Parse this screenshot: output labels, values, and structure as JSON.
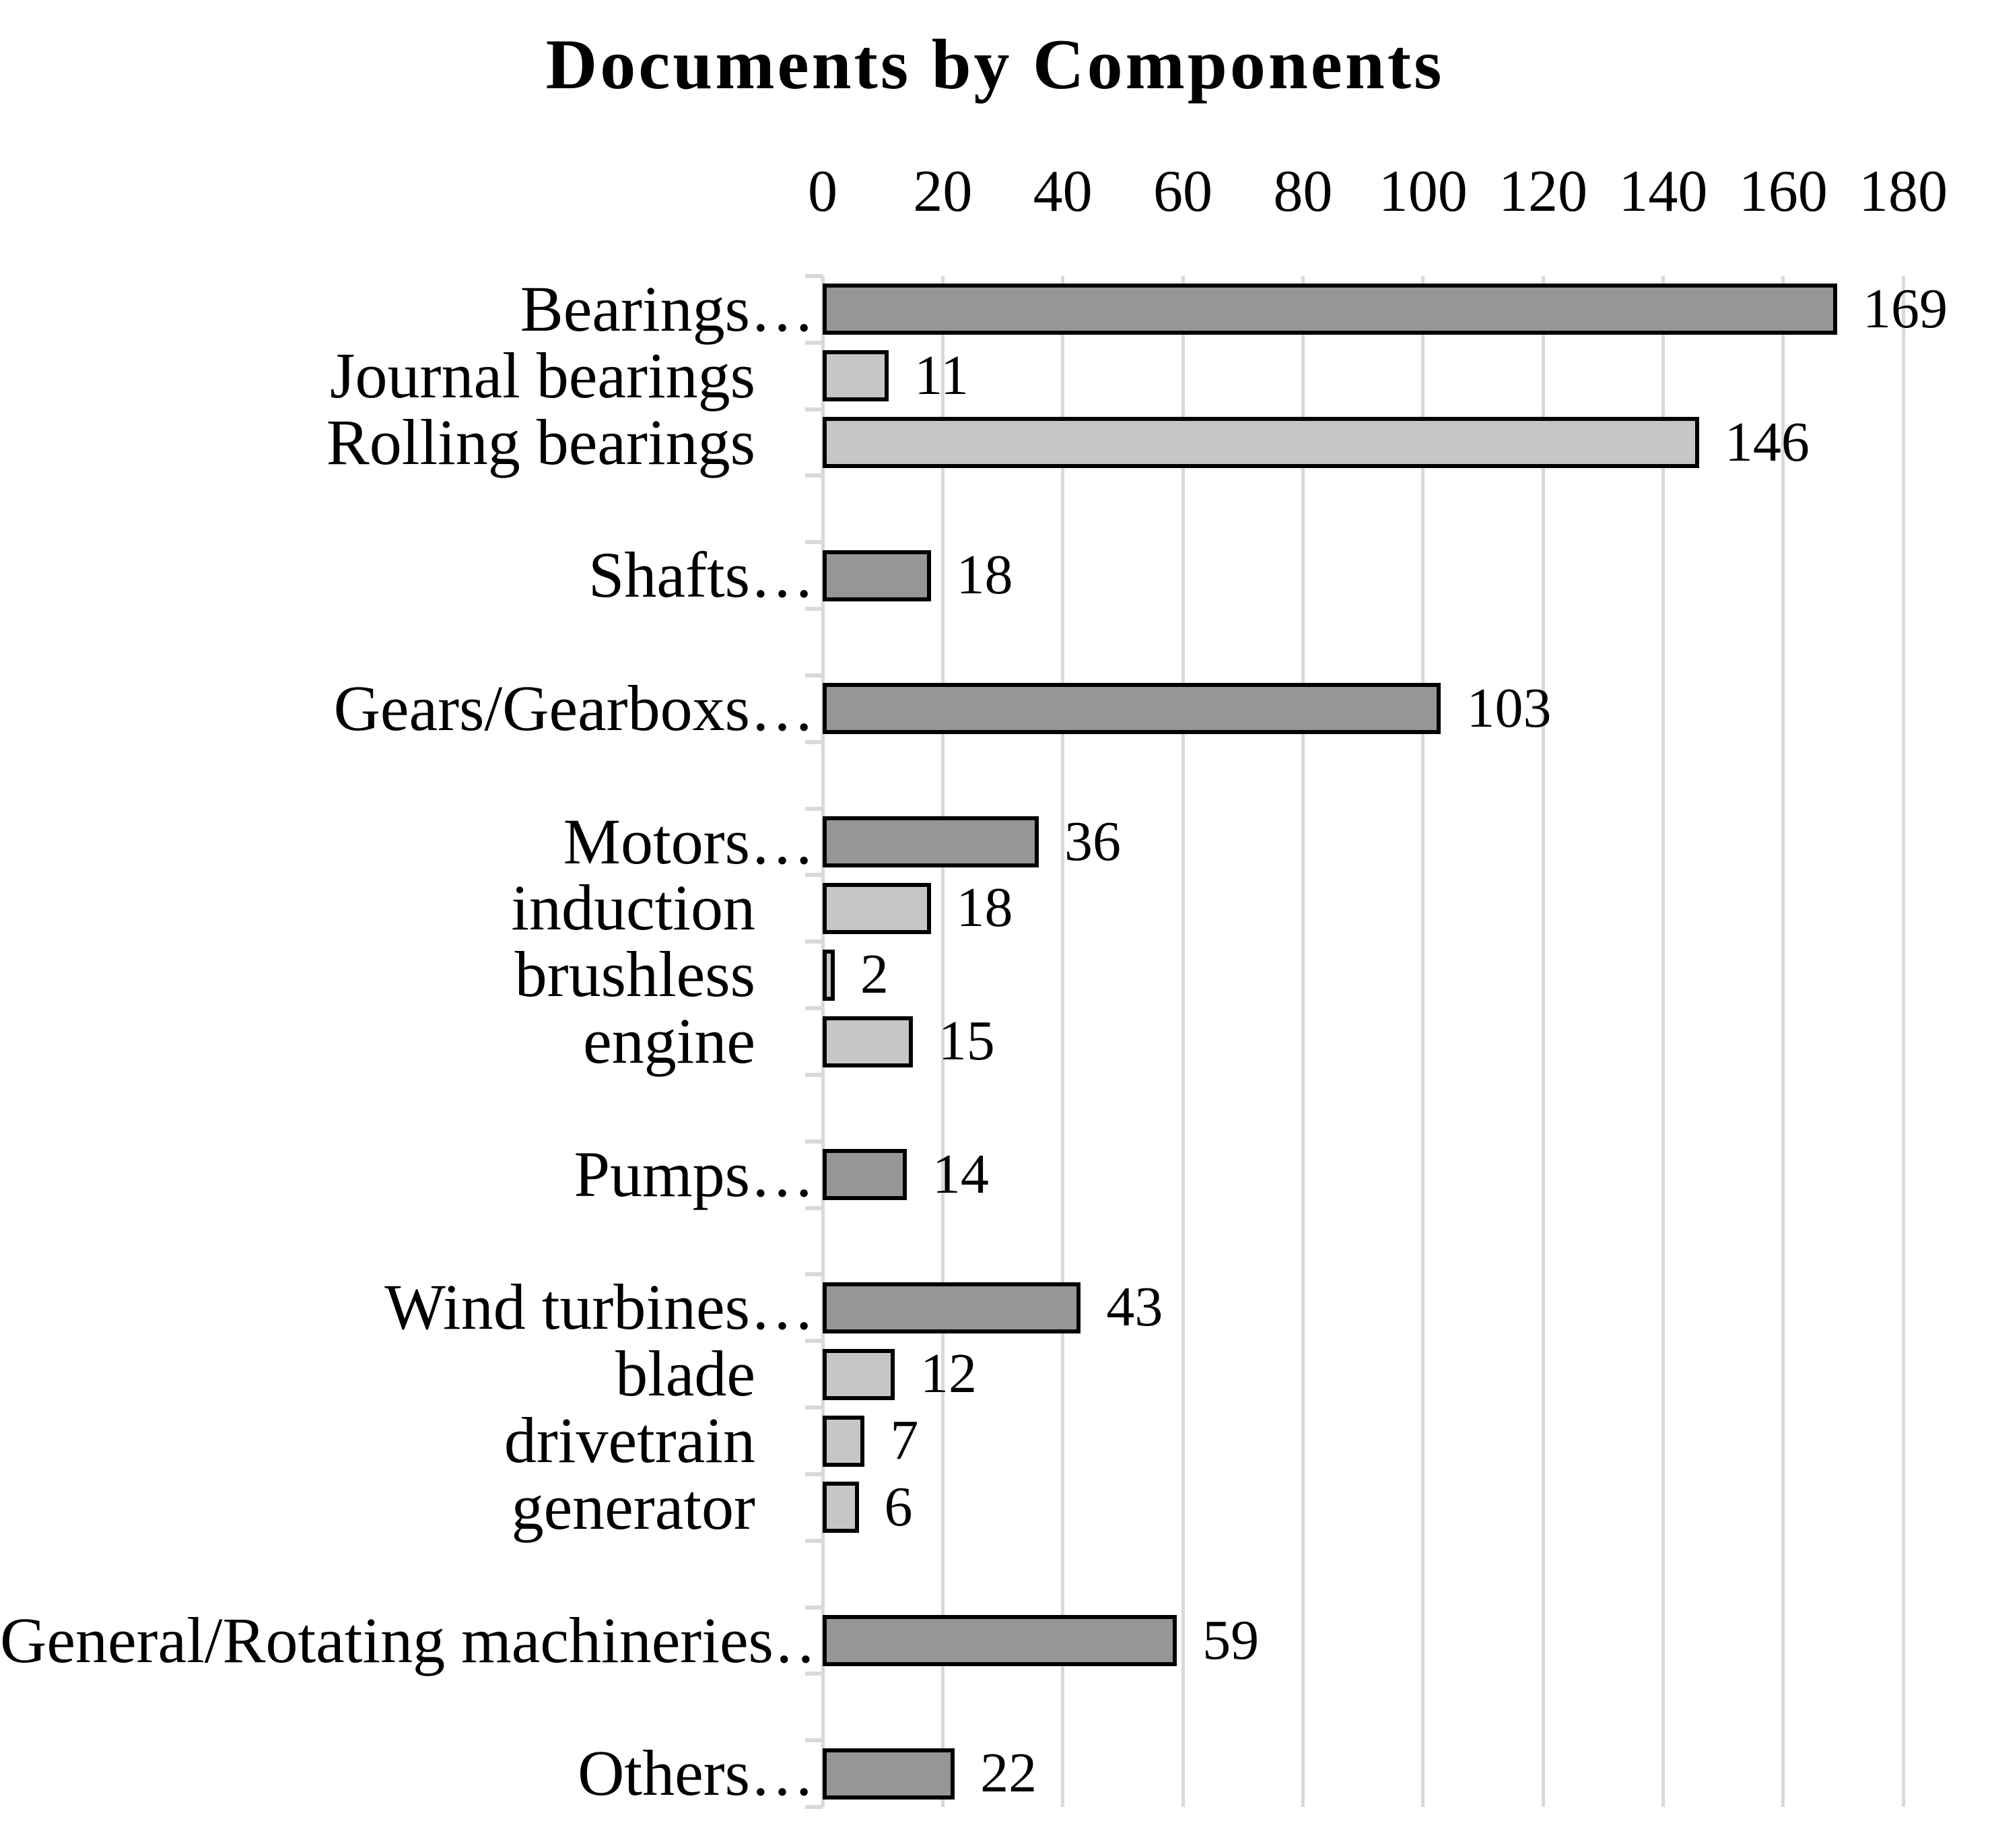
{
  "title": "Documents by Components",
  "x_axis": {
    "tick_labels": [
      "0",
      "20",
      "40",
      "60",
      "80",
      "100",
      "120",
      "140",
      "160",
      "180"
    ]
  },
  "colors": {
    "parent_bar": "#969696",
    "child_bar": "#c6c6c6",
    "bar_border": "#000000",
    "gridline": "#d9d9d9",
    "text": "#000000",
    "background": "#ffffff"
  },
  "chart_data": {
    "type": "bar",
    "orientation": "horizontal",
    "title": "Documents by Components",
    "xlabel": "",
    "ylabel": "",
    "xlim": [
      0,
      180
    ],
    "x_ticks": [
      0,
      20,
      40,
      60,
      80,
      100,
      120,
      140,
      160,
      180
    ],
    "grid": "vertical-gridlines-on",
    "legend": "none",
    "rows": [
      {
        "label": "Bearings…",
        "value": 169,
        "level": "parent"
      },
      {
        "label": "Journal bearings",
        "value": 11,
        "level": "child"
      },
      {
        "label": "Rolling bearings",
        "value": 146,
        "level": "child"
      },
      {
        "label": "",
        "value": null,
        "level": "gap"
      },
      {
        "label": "Shafts…",
        "value": 18,
        "level": "parent"
      },
      {
        "label": "",
        "value": null,
        "level": "gap"
      },
      {
        "label": "Gears/Gearboxs…",
        "value": 103,
        "level": "parent"
      },
      {
        "label": "",
        "value": null,
        "level": "gap"
      },
      {
        "label": "Motors…",
        "value": 36,
        "level": "parent"
      },
      {
        "label": "induction",
        "value": 18,
        "level": "child"
      },
      {
        "label": "brushless",
        "value": 2,
        "level": "child"
      },
      {
        "label": "engine",
        "value": 15,
        "level": "child"
      },
      {
        "label": "",
        "value": null,
        "level": "gap"
      },
      {
        "label": "Pumps…",
        "value": 14,
        "level": "parent"
      },
      {
        "label": "",
        "value": null,
        "level": "gap"
      },
      {
        "label": "Wind turbines…",
        "value": 43,
        "level": "parent"
      },
      {
        "label": "blade",
        "value": 12,
        "level": "child"
      },
      {
        "label": "drivetrain",
        "value": 7,
        "level": "child"
      },
      {
        "label": "generator",
        "value": 6,
        "level": "child"
      },
      {
        "label": "",
        "value": null,
        "level": "gap"
      },
      {
        "label": "General/Rotating machineries…",
        "value": 59,
        "level": "parent"
      },
      {
        "label": "",
        "value": null,
        "level": "gap"
      },
      {
        "label": "Others…",
        "value": 22,
        "level": "parent"
      }
    ]
  }
}
